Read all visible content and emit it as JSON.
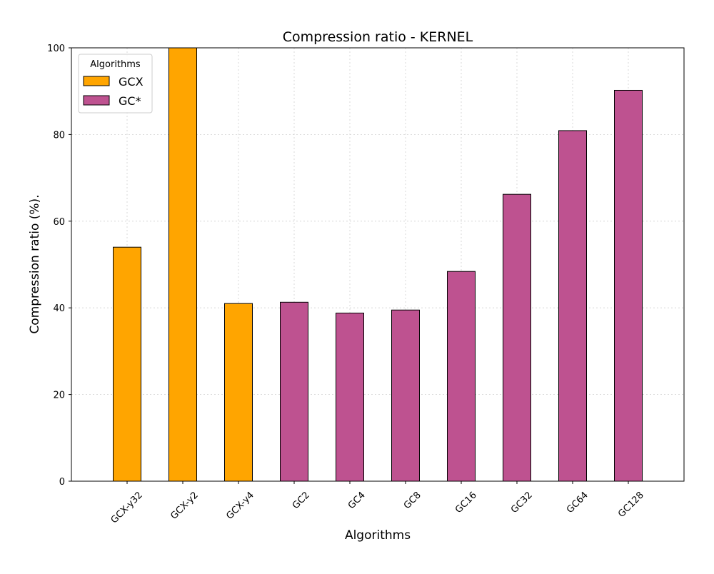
{
  "chart_data": {
    "type": "bar",
    "title": "Compression ratio -  KERNEL",
    "xlabel": "Algorithms",
    "ylabel": "Compression ratio (%).",
    "ylim": [
      0,
      100
    ],
    "yticks": [
      0,
      20,
      40,
      60,
      80,
      100
    ],
    "grid": true,
    "categories": [
      "GCX-y32",
      "GCX-y2",
      "GCX-y4",
      "GC2",
      "GC4",
      "GC8",
      "GC16",
      "GC32",
      "GC64",
      "GC128"
    ],
    "values": [
      54,
      100,
      41,
      41.3,
      38.8,
      39.5,
      48.4,
      66.2,
      80.9,
      90.2
    ],
    "groups": [
      "GCX",
      "GCX",
      "GCX",
      "GC*",
      "GC*",
      "GC*",
      "GC*",
      "GC*",
      "GC*",
      "GC*"
    ],
    "legend": {
      "title": "Algorithms",
      "placement": "top-left",
      "entries": [
        {
          "label": "GCX",
          "color": "#FFA500"
        },
        {
          "label": "GC*",
          "color": "#BE5290"
        }
      ]
    }
  }
}
